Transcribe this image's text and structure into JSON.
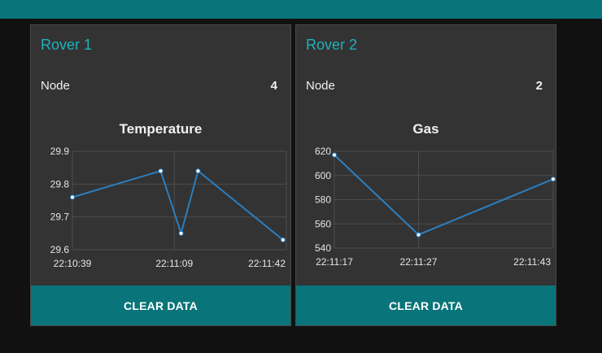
{
  "colors": {
    "topbar": "#097479",
    "accent": "#1bb3bd",
    "card_bg": "#333333",
    "page_bg": "#111111",
    "line": "#2a7fc1",
    "grid": "#4d4d4d"
  },
  "cards": [
    {
      "title": "Rover 1",
      "node_label": "Node",
      "node_value": "4",
      "button_label": "CLEAR DATA"
    },
    {
      "title": "Rover 2",
      "node_label": "Node",
      "node_value": "2",
      "button_label": "CLEAR DATA"
    }
  ],
  "chart_data": [
    {
      "type": "line",
      "title": "Temperature",
      "x_tick_labels": [
        "22:10:39",
        "22:11:09",
        "22:11:42"
      ],
      "x": [
        "22:10:39",
        "22:11:05",
        "22:11:11",
        "22:11:16",
        "22:11:41"
      ],
      "x_seconds_from_tick0": [
        0,
        26,
        32,
        37,
        62
      ],
      "y": [
        29.76,
        29.84,
        29.65,
        29.84,
        29.63
      ],
      "ylim": [
        29.6,
        29.9
      ],
      "y_ticks": [
        "29.9",
        "29.8",
        "29.7",
        "29.6"
      ],
      "grid": true
    },
    {
      "type": "line",
      "title": "Gas",
      "x_tick_labels": [
        "22:11:17",
        "22:11:27",
        "22:11:43"
      ],
      "x": [
        "22:11:17",
        "22:11:27",
        "22:11:43"
      ],
      "y": [
        617,
        551,
        597
      ],
      "ylim": [
        540,
        620
      ],
      "y_ticks": [
        "620",
        "600",
        "580",
        "560",
        "540"
      ],
      "grid": true
    }
  ]
}
